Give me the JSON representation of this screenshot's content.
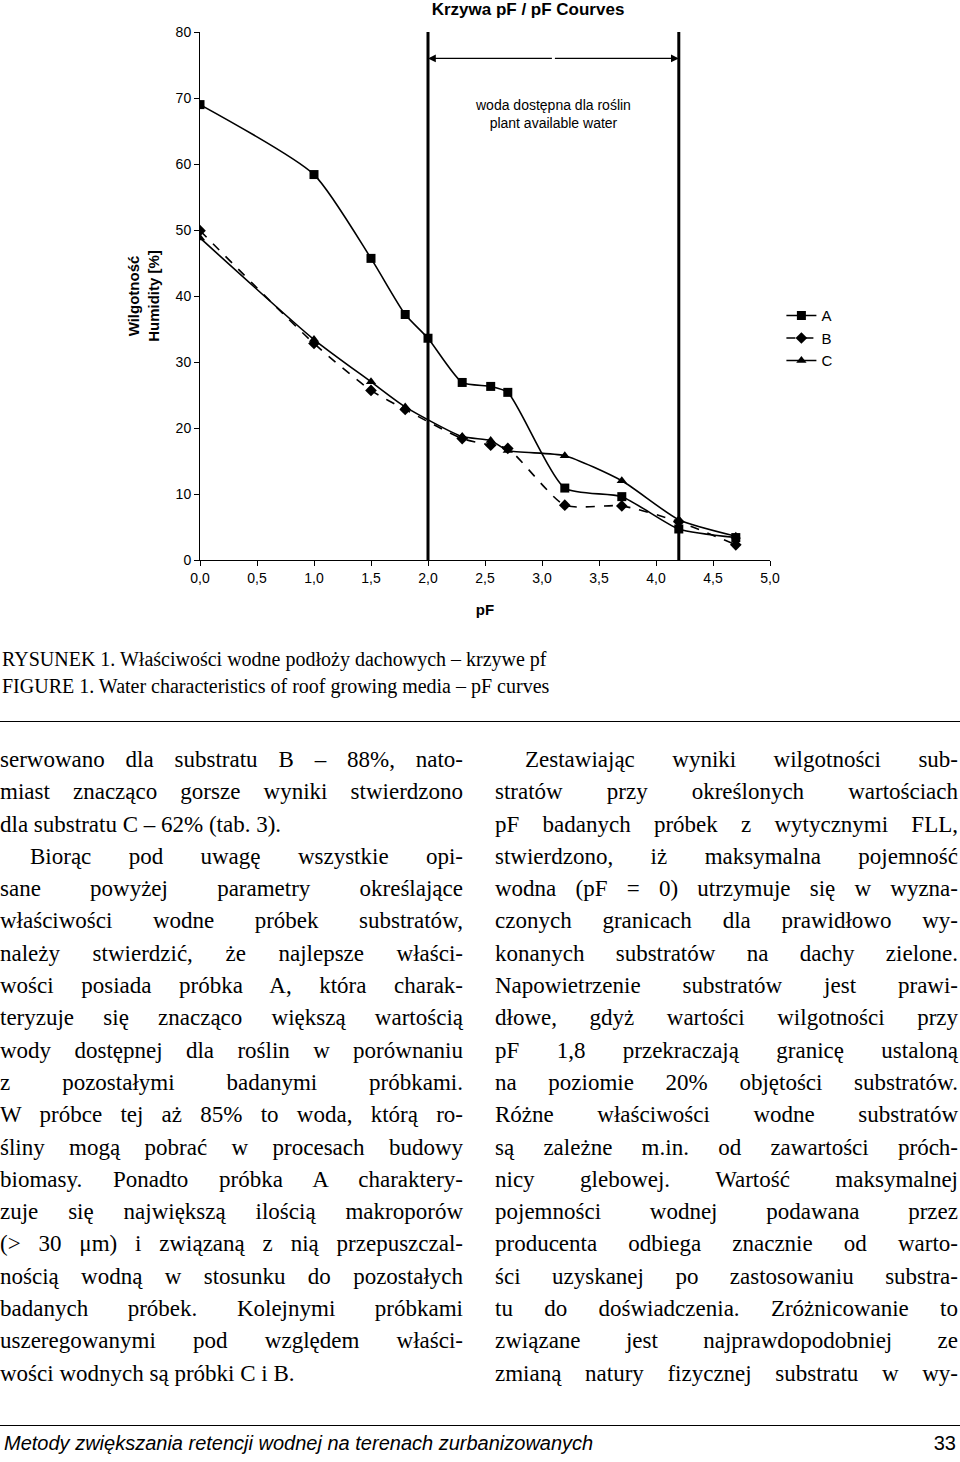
{
  "chart_data": {
    "type": "line",
    "title": "Krzywa pF / pF Courves",
    "x_label": "pF",
    "y_label": "Wilgotność\nHumidity [%]",
    "series": [
      {
        "name": "A",
        "color": "#000000",
        "marker": "square",
        "line_style": "solid",
        "x": [
          0,
          1,
          1.5,
          1.8,
          2,
          2.3,
          2.55,
          2.7,
          3.2,
          3.7,
          4.2,
          4.7
        ],
        "values": [
          69,
          58.4,
          45.7,
          37.2,
          33.6,
          26.9,
          26.3,
          25.4,
          10.9,
          9.6,
          4.7,
          3.4
        ]
      },
      {
        "name": "B",
        "color": "#000000",
        "marker": "diamond",
        "line_style": "dash",
        "x": [
          0,
          1,
          1.5,
          1.8,
          2.3,
          2.55,
          2.7,
          3.2,
          3.7,
          4.2,
          4.7
        ],
        "values": [
          49.9,
          32.8,
          25.7,
          22.8,
          18.4,
          17.4,
          16.9,
          8.3,
          8.2,
          5.8,
          2.3
        ]
      },
      {
        "name": "C",
        "color": "#000000",
        "marker": "triangle",
        "line_style": "solid",
        "x": [
          0,
          1,
          1.5,
          1.8,
          2.3,
          2.55,
          2.7,
          3.2,
          3.7,
          4.2,
          4.7
        ],
        "values": [
          48.8,
          33.4,
          27.0,
          23.2,
          18.7,
          18.1,
          16.6,
          15.8,
          12.0,
          6.1,
          3.6
        ]
      }
    ],
    "xlim": [
      0,
      5
    ],
    "xticks": [
      {
        "value": 0,
        "label": "0,0"
      },
      {
        "value": 0.5,
        "label": "0,5"
      },
      {
        "value": 1,
        "label": "1,0"
      },
      {
        "value": 1.5,
        "label": "1,5"
      },
      {
        "value": 2,
        "label": "2,0"
      },
      {
        "value": 2.5,
        "label": "2,5"
      },
      {
        "value": 3,
        "label": "3,0"
      },
      {
        "value": 3.5,
        "label": "3,5"
      },
      {
        "value": 4,
        "label": "4,0"
      },
      {
        "value": 4.5,
        "label": "4,5"
      },
      {
        "value": 5,
        "label": "5,0"
      }
    ],
    "ylim": [
      0,
      80
    ],
    "yticks": [
      0,
      10,
      20,
      30,
      40,
      50,
      60,
      70,
      80
    ],
    "grid": false,
    "legend": "right",
    "annotations": [
      {
        "text": "woda dostępna dla roślin\nplant available water",
        "x0": 2,
        "x1": 4.2
      }
    ]
  },
  "caption": [
    "RYSUNEK 1. Właściwości wodne podłoży dachowych – krzywe pf",
    "FIGURE 1. Water characteristics of roof growing media – pF curves"
  ],
  "columns": [
    [
      [
        "serwowano dla substratu B – 88%, nato-",
        "miast znacząco gorsze wyniki stwierdzono",
        "dla substratu C – 62% (tab. 3)."
      ],
      [
        "Biorąc pod uwagę wszystkie opi-",
        "sane powyżej parametry określające",
        "właściwości wodne próbek substratów,",
        "należy stwierdzić, że najlepsze właści-",
        "wości posiada próbka A, która charak-",
        "teryzuje się znacząco większą wartością",
        "wody dostępnej dla roślin w porównaniu",
        "z pozostałymi badanymi próbkami.",
        "W próbce tej aż 85% to woda, którą ro-",
        "śliny mogą pobrać w procesach budowy",
        "biomasy. Ponadto próbka A charaktery-",
        "zuje się największą ilością makroporów",
        "(> 30 μm) i związaną z nią przepuszczal-",
        "nością wodną w stosunku do pozostałych",
        "badanych próbek. Kolejnymi próbkami",
        "uszeregowanymi pod względem właści-",
        "wości wodnych są próbki C i B."
      ]
    ],
    [
      [
        "Zestawiając wyniki wilgotności sub-",
        "stratów przy określonych wartościach",
        "pF badanych próbek z wytycznymi FLL,",
        "stwierdzono, iż maksymalna pojemność",
        "wodna (pF = 0) utrzymuje się w wyzna-",
        "czonych granicach dla prawidłowo wy-",
        "konanych substratów na dachy zielone.",
        "Napowietrzenie substratów jest prawi-",
        "dłowe, gdyż wartości wilgotności przy",
        "pF 1,8 przekraczają granicę ustaloną",
        "na poziomie 20% objętości substratów.",
        "Różne właściwości wodne substratów",
        "są zależne m.in. od zawartości próch-",
        "nicy glebowej. Wartość maksymalnej",
        "pojemności wodnej podawana przez",
        "producenta odbiega znacznie od warto-",
        "ści uzyskanej po zastosowaniu substra-",
        "tu do doświadczenia. Zróżnicowanie to",
        "związane jest najprawdopodobniej ze",
        "zmianą natury fizycznej substratu w wy-"
      ]
    ]
  ],
  "footer": {
    "text": "Metody zwiększania retencji wodnej na terenach zurbanizowanych",
    "page": "33"
  }
}
